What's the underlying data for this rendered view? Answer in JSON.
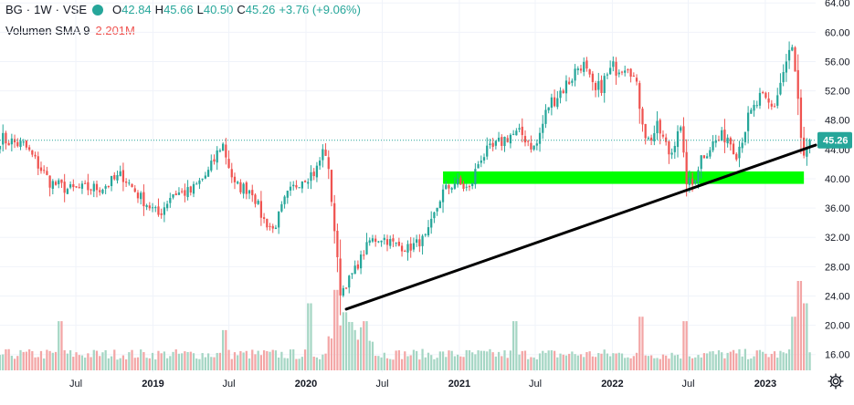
{
  "header": {
    "symbol": "BG",
    "interval": "1W",
    "exchange": "VSE",
    "open_label": "O",
    "open": "42.84",
    "high_label": "H",
    "high": "45.66",
    "low_label": "L",
    "low": "40.50",
    "close_label": "C",
    "close": "45.26",
    "change": "+3.76 (+9.06%)"
  },
  "volume_legend": {
    "label": "Volumen SMA 9",
    "value": "2.201M"
  },
  "colors": {
    "up": "#26a69a",
    "down": "#ef5350",
    "vol_up": "#a5d6c4",
    "vol_down": "#f3a6a6",
    "support_zone": "#00ff00",
    "trendline": "#000000",
    "price_tag": "#26a69a",
    "grid": "#f0f3fa",
    "axis_text": "#131722"
  },
  "icons": {
    "settings": "gear-icon",
    "status": "market-status-dot"
  },
  "chart_data": {
    "type": "candlestick",
    "title": "BG · 1W · VSE",
    "x_axis": {
      "ticks": [
        "Jul",
        "2019",
        "Jul",
        "2020",
        "Jul",
        "2021",
        "Jul",
        "2022",
        "Jul",
        "2023"
      ],
      "tick_dates": [
        "2018-07-01",
        "2019-01-01",
        "2019-07-01",
        "2020-01-01",
        "2020-07-01",
        "2021-01-01",
        "2021-07-01",
        "2022-01-01",
        "2022-07-01",
        "2023-01-01"
      ],
      "range": [
        "2018-01-01",
        "2023-05-01"
      ]
    },
    "y_axis": {
      "ticks": [
        "16.00",
        "20.00",
        "24.00",
        "28.00",
        "32.00",
        "36.00",
        "40.00",
        "44.00",
        "48.00",
        "52.00",
        "56.00",
        "60.00",
        "64.00"
      ],
      "range": [
        13.6,
        64.4
      ],
      "position": "right"
    },
    "last_price": {
      "value": 45.26,
      "label": "45.26"
    },
    "support_zone": {
      "from": "2020-11-23",
      "to": "2023-04-03",
      "low": 39.3,
      "high": 41.0
    },
    "trendline": {
      "start": [
        "2020-04-06",
        22.2
      ],
      "end": [
        "2023-05-01",
        44.6
      ]
    },
    "price_anchors": [
      [
        "2018-01-01",
        45.5
      ],
      [
        "2018-03-01",
        44.5
      ],
      [
        "2018-05-01",
        39.5
      ],
      [
        "2018-06-15",
        38.5
      ],
      [
        "2018-09-01",
        38.8
      ],
      [
        "2018-10-20",
        40.5
      ],
      [
        "2018-12-01",
        37.5
      ],
      [
        "2019-01-15",
        35.0
      ],
      [
        "2019-02-15",
        38.0
      ],
      [
        "2019-04-01",
        38.2
      ],
      [
        "2019-05-15",
        41.0
      ],
      [
        "2019-06-15",
        45.0
      ],
      [
        "2019-07-15",
        39.0
      ],
      [
        "2019-08-25",
        38.5
      ],
      [
        "2019-09-20",
        34.5
      ],
      [
        "2019-10-15",
        33.0
      ],
      [
        "2019-11-15",
        37.5
      ],
      [
        "2019-12-20",
        40.0
      ],
      [
        "2020-01-25",
        41.0
      ],
      [
        "2020-02-15",
        44.5
      ],
      [
        "2020-02-29",
        38.5
      ],
      [
        "2020-03-14",
        30.0
      ],
      [
        "2020-03-23",
        24.5
      ],
      [
        "2020-04-10",
        26.0
      ],
      [
        "2020-05-01",
        28.0
      ],
      [
        "2020-06-01",
        31.5
      ],
      [
        "2020-07-01",
        32.0
      ],
      [
        "2020-08-01",
        31.0
      ],
      [
        "2020-09-01",
        30.5
      ],
      [
        "2020-10-15",
        32.0
      ],
      [
        "2020-11-20",
        38.0
      ],
      [
        "2020-12-20",
        39.5
      ],
      [
        "2021-01-25",
        38.5
      ],
      [
        "2021-02-20",
        43.0
      ],
      [
        "2021-03-20",
        44.0
      ],
      [
        "2021-05-01",
        46.0
      ],
      [
        "2021-06-01",
        46.0
      ],
      [
        "2021-07-01",
        44.0
      ],
      [
        "2021-08-01",
        50.0
      ],
      [
        "2021-09-15",
        53.0
      ],
      [
        "2021-10-20",
        56.0
      ],
      [
        "2021-11-20",
        51.5
      ],
      [
        "2022-01-01",
        55.0
      ],
      [
        "2022-02-10",
        56.0
      ],
      [
        "2022-03-01",
        52.0
      ],
      [
        "2022-03-25",
        45.0
      ],
      [
        "2022-04-20",
        47.0
      ],
      [
        "2022-05-20",
        43.0
      ],
      [
        "2022-06-10",
        48.0
      ],
      [
        "2022-06-25",
        40.0
      ],
      [
        "2022-07-10",
        39.0
      ],
      [
        "2022-08-01",
        43.0
      ],
      [
        "2022-09-01",
        45.0
      ],
      [
        "2022-10-01",
        46.0
      ],
      [
        "2022-10-25",
        43.5
      ],
      [
        "2022-11-20",
        48.0
      ],
      [
        "2022-12-20",
        51.0
      ],
      [
        "2023-01-20",
        49.5
      ],
      [
        "2023-02-15",
        55.0
      ],
      [
        "2023-03-05",
        58.0
      ],
      [
        "2023-03-18",
        52.0
      ],
      [
        "2023-03-28",
        44.0
      ],
      [
        "2023-04-05",
        42.0
      ],
      [
        "2023-04-17",
        45.3
      ]
    ],
    "volume": {
      "scale": "relative",
      "spikes": [
        [
          "2018-05-25",
          0.55
        ],
        [
          "2019-06-21",
          0.45
        ],
        [
          "2020-01-10",
          0.75
        ],
        [
          "2020-03-13",
          0.9
        ],
        [
          "2020-04-03",
          0.65
        ],
        [
          "2020-05-22",
          0.55
        ],
        [
          "2021-05-14",
          0.55
        ],
        [
          "2022-03-11",
          0.6
        ],
        [
          "2022-06-24",
          0.55
        ],
        [
          "2023-03-10",
          0.6
        ],
        [
          "2023-03-24",
          1.0
        ],
        [
          "2023-04-07",
          0.75
        ]
      ]
    }
  }
}
